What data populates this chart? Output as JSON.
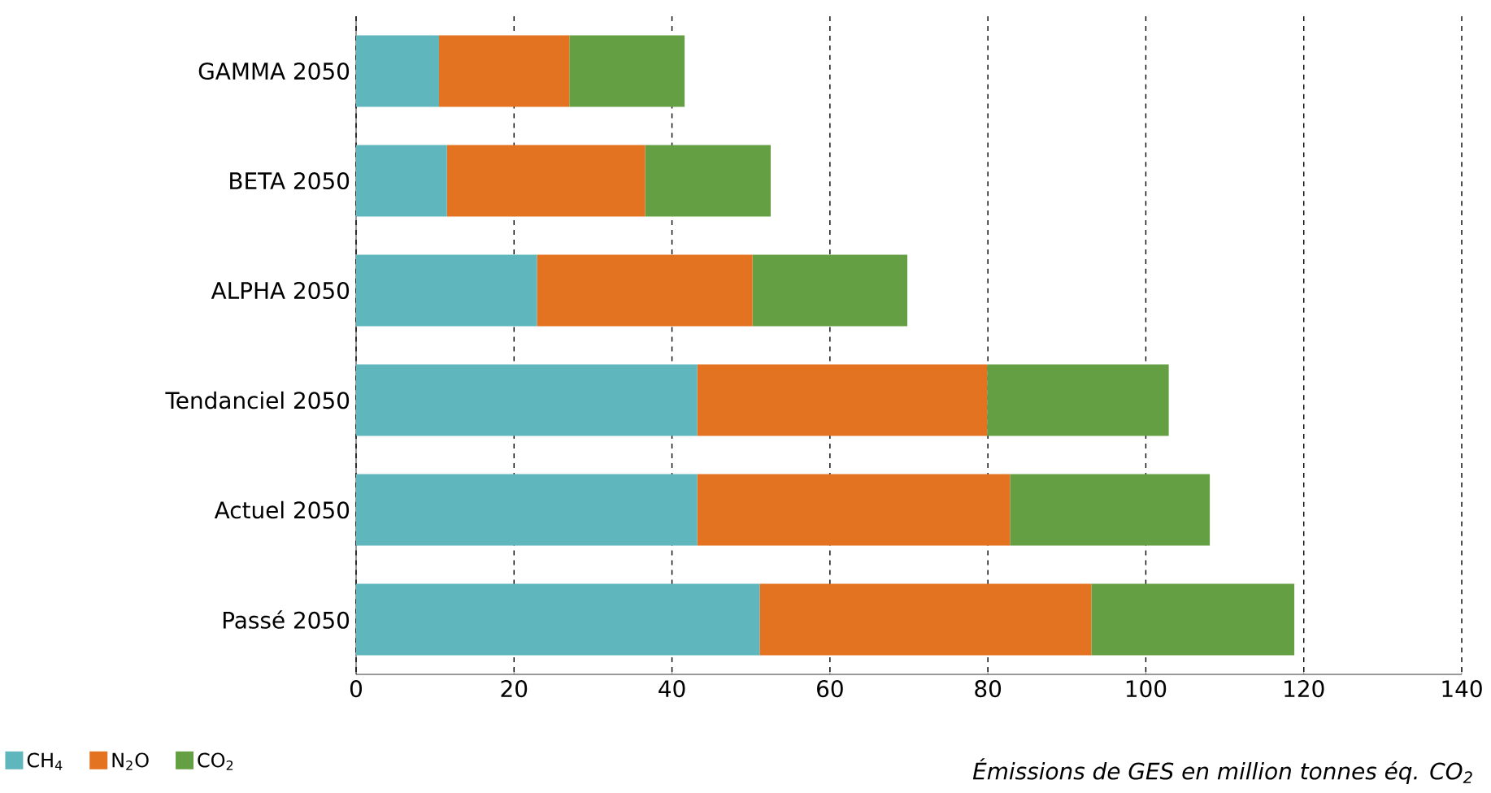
{
  "chart_data": {
    "type": "bar",
    "orientation": "horizontal",
    "stacked": true,
    "categories": [
      "GAMMA 2050",
      "BETA 2050",
      "ALPHA 2050",
      "Tendanciel 2050",
      "Actuel 2050",
      "Passé 2050"
    ],
    "series": [
      {
        "name": "CH$_{4}$",
        "color": "#5fb6bd",
        "values": [
          10.5,
          11.5,
          22.9,
          43.2,
          43.2,
          51.1
        ]
      },
      {
        "name": "N$_{2}$O",
        "color": "#e37221",
        "values": [
          16.5,
          25.1,
          27.3,
          36.7,
          39.6,
          42.0
        ]
      },
      {
        "name": "CO$_{2}$",
        "color": "#64a043",
        "values": [
          14.6,
          15.9,
          19.6,
          23.0,
          25.3,
          25.7
        ]
      }
    ],
    "xlim": [
      0,
      140
    ],
    "xticks": [
      0,
      20,
      40,
      60,
      80,
      100,
      120,
      140
    ],
    "xlabel": "Émissions de GES en million tonnes éq. CO$_{2}$",
    "grid": "x",
    "legend": "bottom left"
  }
}
